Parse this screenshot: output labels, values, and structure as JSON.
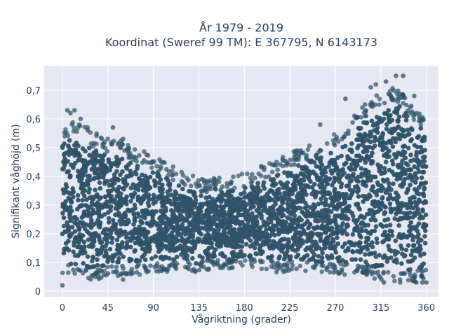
{
  "chart_data": {
    "type": "scatter",
    "title_line1": "År 1979 - 2019",
    "title_line2": "Koordinat (Sweref 99 TM): E 367795, N 6143173",
    "xlabel": "Vågriktning (grader)",
    "ylabel": "Signifikant våghöjd (m)",
    "xlim": [
      -18,
      372
    ],
    "ylim": [
      -0.02,
      0.785
    ],
    "xticks": [
      0,
      45,
      90,
      135,
      180,
      225,
      270,
      315,
      360
    ],
    "xtick_labels": [
      "0",
      "45",
      "90",
      "135",
      "180",
      "225",
      "270",
      "315",
      "360"
    ],
    "yticks": [
      0,
      0.1,
      0.2,
      0.3,
      0.4,
      0.5,
      0.6,
      0.7
    ],
    "ytick_labels": [
      "0",
      "0,1",
      "0,2",
      "0,3",
      "0,4",
      "0,5",
      "0,6",
      "0,7"
    ],
    "grid": true,
    "marker_color": "#2f5269",
    "plot_background": "#e5e8f0",
    "envelope_x": [
      0,
      15,
      30,
      45,
      60,
      75,
      90,
      105,
      120,
      135,
      150,
      165,
      180,
      195,
      210,
      225,
      240,
      255,
      270,
      285,
      300,
      315,
      330,
      345,
      360
    ],
    "envelope_y_lower": [
      0.1,
      0.09,
      0.08,
      0.09,
      0.1,
      0.1,
      0.11,
      0.11,
      0.11,
      0.11,
      0.12,
      0.12,
      0.12,
      0.12,
      0.11,
      0.11,
      0.11,
      0.1,
      0.1,
      0.1,
      0.09,
      0.08,
      0.07,
      0.07,
      0.09
    ],
    "envelope_y_upper": [
      0.52,
      0.55,
      0.5,
      0.48,
      0.47,
      0.44,
      0.42,
      0.39,
      0.36,
      0.34,
      0.34,
      0.35,
      0.36,
      0.38,
      0.4,
      0.43,
      0.45,
      0.47,
      0.5,
      0.55,
      0.6,
      0.64,
      0.66,
      0.6,
      0.55
    ],
    "outlier_points": [
      [
        0,
        0.02
      ],
      [
        5,
        0.63
      ],
      [
        8,
        0.62
      ],
      [
        12,
        0.63
      ],
      [
        18,
        0.6
      ],
      [
        25,
        0.56
      ],
      [
        50,
        0.57
      ],
      [
        60,
        0.53
      ],
      [
        255,
        0.58
      ],
      [
        280,
        0.67
      ],
      [
        300,
        0.63
      ],
      [
        305,
        0.71
      ],
      [
        310,
        0.72
      ],
      [
        320,
        0.73
      ],
      [
        330,
        0.75
      ],
      [
        337,
        0.75
      ],
      [
        348,
        0.68
      ],
      [
        356,
        0.03
      ],
      [
        360,
        0.03
      ],
      [
        350,
        0.03
      ],
      [
        318,
        0.03
      ],
      [
        60,
        0.04
      ]
    ]
  }
}
